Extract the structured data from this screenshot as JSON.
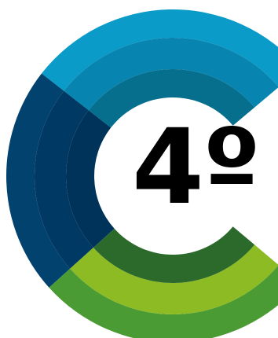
{
  "badge": {
    "label": "4º"
  },
  "colors": {
    "cyan_outer": "#0a9bc8",
    "cyan_mid": "#0785b0",
    "cyan_inner": "#066f8e",
    "navy_outer": "#01426f",
    "navy_mid": "#003a64",
    "navy_inner": "#00335a",
    "green_outer": "#4b9b34",
    "green_mid": "#8dbb24",
    "green_inner": "#2c6a2c",
    "text": "#000000",
    "background": "#ffffff"
  },
  "icons": {
    "logo": "segmented-c-ring-icon"
  }
}
